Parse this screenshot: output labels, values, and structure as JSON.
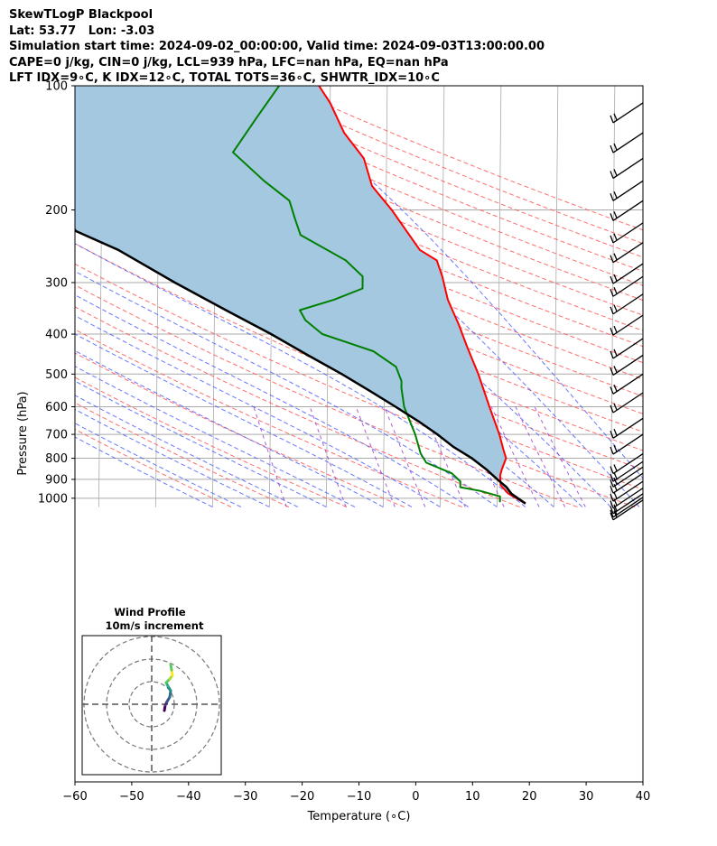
{
  "header": {
    "title_line1": "SkewTLogP Blackpool",
    "title_line2": "Lat: 53.77   Lon: -3.03",
    "title_line3": "Simulation start time: 2024-09-02_00:00:00, Valid time: 2024-09-03T13:00:00.00",
    "title_line4": "CAPE=0 j/kg, CIN=0 j/kg, LCL=939 hPa, LFC=nan hPa, EQ=nan hPa",
    "title_line5": "LFT IDX=9∘C, K IDX=12∘C, TOTAL TOTS=36∘C, SHWTR_IDX=10∘C"
  },
  "chart_data": {
    "type": "skewt-logp",
    "xlabel": "Temperature (∘C)",
    "ylabel": "Pressure (hPa)",
    "xlim": [
      -60,
      40
    ],
    "ylim": [
      1050,
      100
    ],
    "y_scale": "log",
    "x_ticks": [
      -60,
      -50,
      -40,
      -30,
      -20,
      -10,
      0,
      10,
      20,
      30,
      40
    ],
    "x_tick_labels": [
      "−60",
      "−50",
      "−40",
      "−30",
      "−20",
      "−10",
      "0",
      "10",
      "20",
      "30",
      "40"
    ],
    "y_ticks": [
      100,
      200,
      300,
      400,
      500,
      600,
      700,
      800,
      900,
      1000
    ],
    "y_tick_labels": [
      "100",
      "200",
      "300",
      "400",
      "500",
      "600",
      "700",
      "800",
      "900",
      "1000"
    ],
    "grid": true,
    "colors": {
      "temperature": "#ff0000",
      "dewpoint": "#008000",
      "parcel": "#000000",
      "cape_fill": "#a3c8e0",
      "dry_adiabat": "#ff5555",
      "moist_adiabat": "#4455ff",
      "mixing_ratio": "#9933cc",
      "isotherm": "#aaaaaa",
      "isobar": "#aaaaaa",
      "barb": "#000000"
    },
    "series": [
      {
        "name": "temperature",
        "points": [
          [
            15,
            1030
          ],
          [
            12,
            975
          ],
          [
            10.6,
            930
          ],
          [
            10.5,
            880
          ],
          [
            10.8,
            850
          ],
          [
            11.5,
            800
          ],
          [
            11,
            760
          ],
          [
            10.3,
            700
          ],
          [
            8.5,
            600
          ],
          [
            6.5,
            500
          ],
          [
            4.5,
            430
          ],
          [
            3,
            380
          ],
          [
            1,
            330
          ],
          [
            0,
            290
          ],
          [
            -1,
            265
          ],
          [
            -4,
            250
          ],
          [
            -9,
            200
          ],
          [
            -12.5,
            175
          ],
          [
            -14,
            150
          ],
          [
            -17.5,
            130
          ],
          [
            -20,
            110
          ],
          [
            -22,
            100
          ]
        ]
      },
      {
        "name": "dewpoint",
        "points": [
          [
            10.5,
            1022
          ],
          [
            10.5,
            990
          ],
          [
            7,
            960
          ],
          [
            3.5,
            940
          ],
          [
            3.5,
            910
          ],
          [
            2,
            870
          ],
          [
            -2.5,
            820
          ],
          [
            -3.5,
            780
          ],
          [
            -4.5,
            700
          ],
          [
            -6.5,
            600
          ],
          [
            -7,
            540
          ],
          [
            -7,
            520
          ],
          [
            -8,
            480
          ],
          [
            -12,
            440
          ],
          [
            -21,
            400
          ],
          [
            -24,
            370
          ],
          [
            -25,
            350
          ],
          [
            -19,
            330
          ],
          [
            -14,
            310
          ],
          [
            -14,
            290
          ],
          [
            -17,
            265
          ],
          [
            -25,
            230
          ],
          [
            -26,
            210
          ],
          [
            -27,
            190
          ],
          [
            -31.5,
            170
          ],
          [
            -37,
            145
          ],
          [
            -33,
            120
          ],
          [
            -29,
            100
          ]
        ]
      },
      {
        "name": "parcel",
        "points": [
          [
            15,
            1030
          ],
          [
            12.5,
            975
          ],
          [
            11.6,
            939
          ],
          [
            10,
            900
          ],
          [
            8,
            850
          ],
          [
            5.5,
            800
          ],
          [
            2.2,
            750
          ],
          [
            -0.6,
            700
          ],
          [
            -4,
            650
          ],
          [
            -8,
            600
          ],
          [
            -12.5,
            550
          ],
          [
            -17.5,
            500
          ],
          [
            -23.5,
            450
          ],
          [
            -30,
            400
          ],
          [
            -38,
            350
          ],
          [
            -47,
            300
          ],
          [
            -57,
            250
          ],
          [
            -64.5,
            225
          ],
          [
            -67,
            200
          ],
          [
            -72.5,
            180
          ],
          [
            -76,
            160
          ],
          [
            -82,
            140
          ],
          [
            -86,
            120
          ],
          [
            -90,
            100
          ]
        ]
      }
    ],
    "wind_barbs": {
      "pressures": [
        1010,
        995,
        975,
        945,
        910,
        870,
        840,
        815,
        780,
        700,
        640,
        555,
        500,
        450,
        410,
        360,
        320,
        290,
        270,
        240,
        215,
        190,
        170,
        150,
        130,
        110
      ]
    },
    "hodograph_inset": {
      "title_line1": "Wind Profile",
      "title_line2": "10m/s increment",
      "colormap": "viridis"
    }
  }
}
